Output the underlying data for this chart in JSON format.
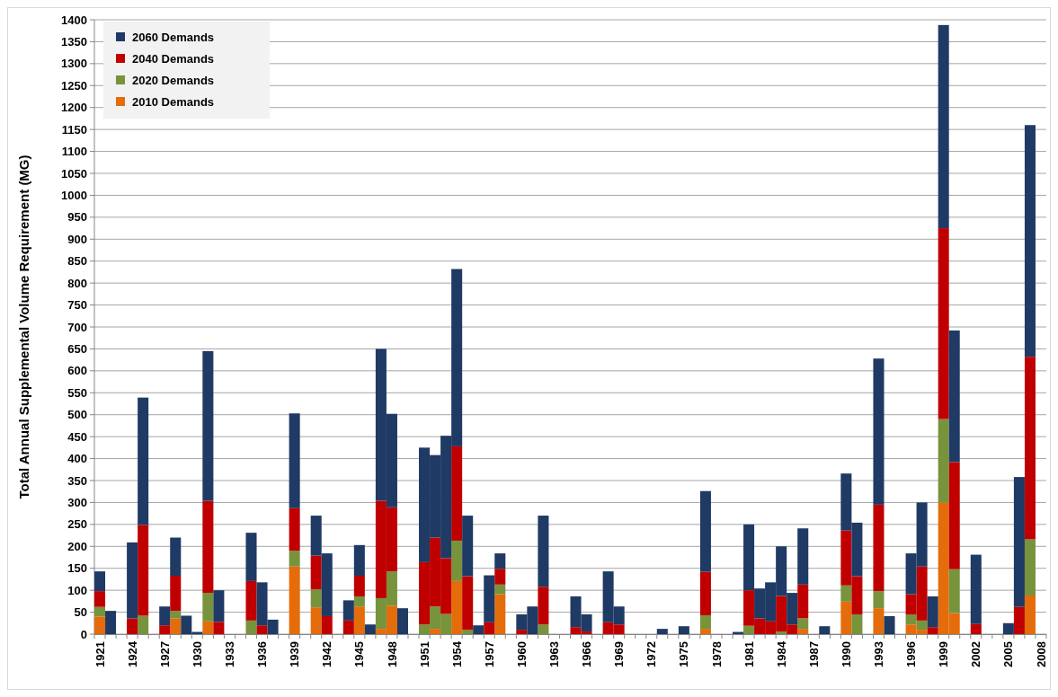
{
  "chart_data": {
    "type": "bar",
    "stacked": true,
    "ylabel": "Total Annual Supplemental Volume Requirement (MG)",
    "categories": [
      "1921",
      null,
      null,
      "1924",
      null,
      null,
      "1927",
      null,
      null,
      "1930",
      null,
      null,
      "1933",
      null,
      null,
      "1936",
      null,
      null,
      "1939",
      null,
      null,
      "1942",
      null,
      null,
      "1945",
      null,
      null,
      "1948",
      null,
      null,
      "1951",
      null,
      null,
      "1954",
      null,
      null,
      "1957",
      null,
      null,
      "1960",
      null,
      null,
      "1963",
      null,
      null,
      "1966",
      null,
      null,
      "1969",
      null,
      null,
      "1972",
      null,
      null,
      "1975",
      null,
      null,
      "1978",
      null,
      null,
      "1981",
      null,
      null,
      "1984",
      null,
      null,
      "1987",
      null,
      null,
      "1990",
      null,
      null,
      "1993",
      null,
      null,
      "1996",
      null,
      null,
      "1999",
      null,
      null,
      "2002",
      null,
      null,
      "2005",
      null,
      null,
      "2008"
    ],
    "series": [
      {
        "name": "2010 Demands",
        "color": "#e46c0a",
        "values": [
          40,
          0,
          0,
          0,
          0,
          0,
          0,
          36,
          0,
          0,
          29,
          0,
          0,
          0,
          0,
          0,
          0,
          0,
          154,
          0,
          61,
          0,
          0,
          0,
          63,
          0,
          12,
          65,
          0,
          0,
          0,
          12,
          0,
          121,
          0,
          0,
          0,
          91,
          0,
          0,
          0,
          0,
          0,
          0,
          0,
          0,
          0,
          0,
          0,
          0,
          0,
          0,
          0,
          0,
          0,
          0,
          12,
          0,
          0,
          0,
          0,
          0,
          0,
          0,
          0,
          12,
          0,
          0,
          0,
          74,
          0,
          0,
          59,
          0,
          0,
          22,
          10,
          0,
          300,
          48,
          0,
          0,
          0,
          0,
          0,
          0,
          88,
          0
        ]
      },
      {
        "name": "2020 Demands",
        "color": "#77933c",
        "values": [
          22,
          0,
          0,
          0,
          42,
          0,
          0,
          17,
          0,
          0,
          65,
          0,
          0,
          0,
          31,
          0,
          0,
          0,
          36,
          0,
          41,
          0,
          0,
          0,
          23,
          0,
          70,
          78,
          0,
          0,
          22,
          51,
          46,
          92,
          10,
          0,
          0,
          22,
          0,
          0,
          0,
          22,
          0,
          0,
          0,
          0,
          0,
          0,
          0,
          0,
          0,
          0,
          0,
          0,
          0,
          0,
          31,
          0,
          0,
          0,
          19,
          0,
          0,
          6,
          0,
          24,
          0,
          0,
          0,
          37,
          45,
          0,
          39,
          0,
          0,
          23,
          21,
          0,
          190,
          100,
          0,
          0,
          0,
          0,
          0,
          0,
          128,
          0
        ]
      },
      {
        "name": "2040 Demands",
        "color": "#c00000",
        "values": [
          36,
          0,
          0,
          36,
          207,
          0,
          20,
          80,
          0,
          0,
          210,
          28,
          0,
          0,
          90,
          20,
          0,
          0,
          97,
          0,
          77,
          41,
          0,
          31,
          47,
          0,
          222,
          146,
          0,
          0,
          142,
          157,
          127,
          215,
          122,
          0,
          27,
          36,
          0,
          10,
          0,
          86,
          0,
          0,
          16,
          6,
          0,
          27,
          22,
          0,
          0,
          0,
          0,
          0,
          0,
          0,
          99,
          0,
          0,
          0,
          81,
          36,
          29,
          81,
          22,
          77,
          0,
          0,
          0,
          125,
          87,
          0,
          197,
          0,
          0,
          46,
          123,
          16,
          435,
          244,
          0,
          23,
          0,
          0,
          0,
          62,
          416,
          0
        ]
      },
      {
        "name": "2060 Demands",
        "color": "#1f3a64",
        "values": [
          45,
          53,
          0,
          173,
          290,
          0,
          43,
          87,
          42,
          5,
          341,
          72,
          0,
          0,
          110,
          98,
          33,
          0,
          216,
          0,
          91,
          143,
          0,
          46,
          70,
          22,
          346,
          213,
          59,
          0,
          261,
          188,
          279,
          404,
          138,
          20,
          107,
          35,
          0,
          35,
          63,
          162,
          0,
          0,
          70,
          39,
          0,
          116,
          41,
          0,
          0,
          0,
          12,
          0,
          18,
          0,
          184,
          0,
          0,
          5,
          150,
          68,
          89,
          113,
          72,
          128,
          0,
          18,
          0,
          130,
          122,
          0,
          333,
          41,
          0,
          93,
          146,
          70,
          463,
          300,
          0,
          158,
          0,
          0,
          25,
          296,
          528,
          0
        ]
      }
    ],
    "ylim": [
      0,
      1400
    ],
    "yticks": [
      0,
      50,
      100,
      150,
      200,
      250,
      300,
      350,
      400,
      450,
      500,
      550,
      600,
      650,
      700,
      750,
      800,
      850,
      900,
      950,
      1000,
      1050,
      1100,
      1150,
      1200,
      1250,
      1300,
      1350,
      1400
    ],
    "grid": "y",
    "legend": "top left"
  }
}
